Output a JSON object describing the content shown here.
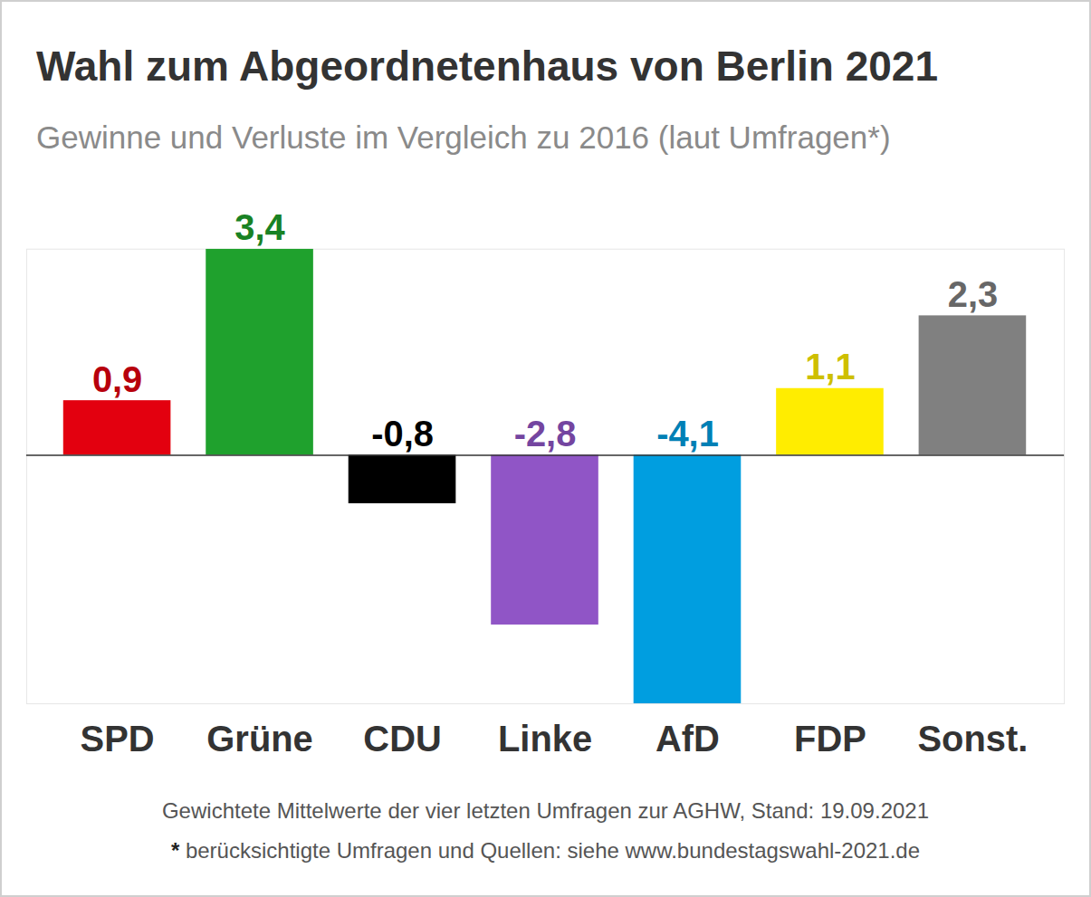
{
  "chart_data": {
    "type": "bar",
    "title": "Wahl zum Abgeordnetenhaus von Berlin 2021",
    "subtitle": "Gewinne und Verluste im Vergleich zu 2016 (laut Umfragen*)",
    "categories": [
      "SPD",
      "Grüne",
      "CDU",
      "Linke",
      "AfD",
      "FDP",
      "Sonst."
    ],
    "values": [
      0.9,
      3.4,
      -0.8,
      -2.8,
      -4.1,
      1.1,
      2.3
    ],
    "value_labels": [
      "0,9",
      "3,4",
      "-0,8",
      "-2,8",
      "-4,1",
      "1,1",
      "2,3"
    ],
    "colors": [
      "#e3000f",
      "#1fa12d",
      "#000000",
      "#9055c6",
      "#009ee0",
      "#ffed00",
      "#808080"
    ],
    "ylim": [
      -4.1,
      3.4
    ],
    "yticks": [
      0
    ],
    "data_labels": true,
    "tick_labels": "x",
    "annotations": [
      "Gewichtete Mittelwerte der vier letzten Umfragen zur AGHW, Stand: 19.09.2021",
      "* berücksichtigte Umfragen und Quellen: siehe www.bundestagswahl-2021.de"
    ]
  }
}
